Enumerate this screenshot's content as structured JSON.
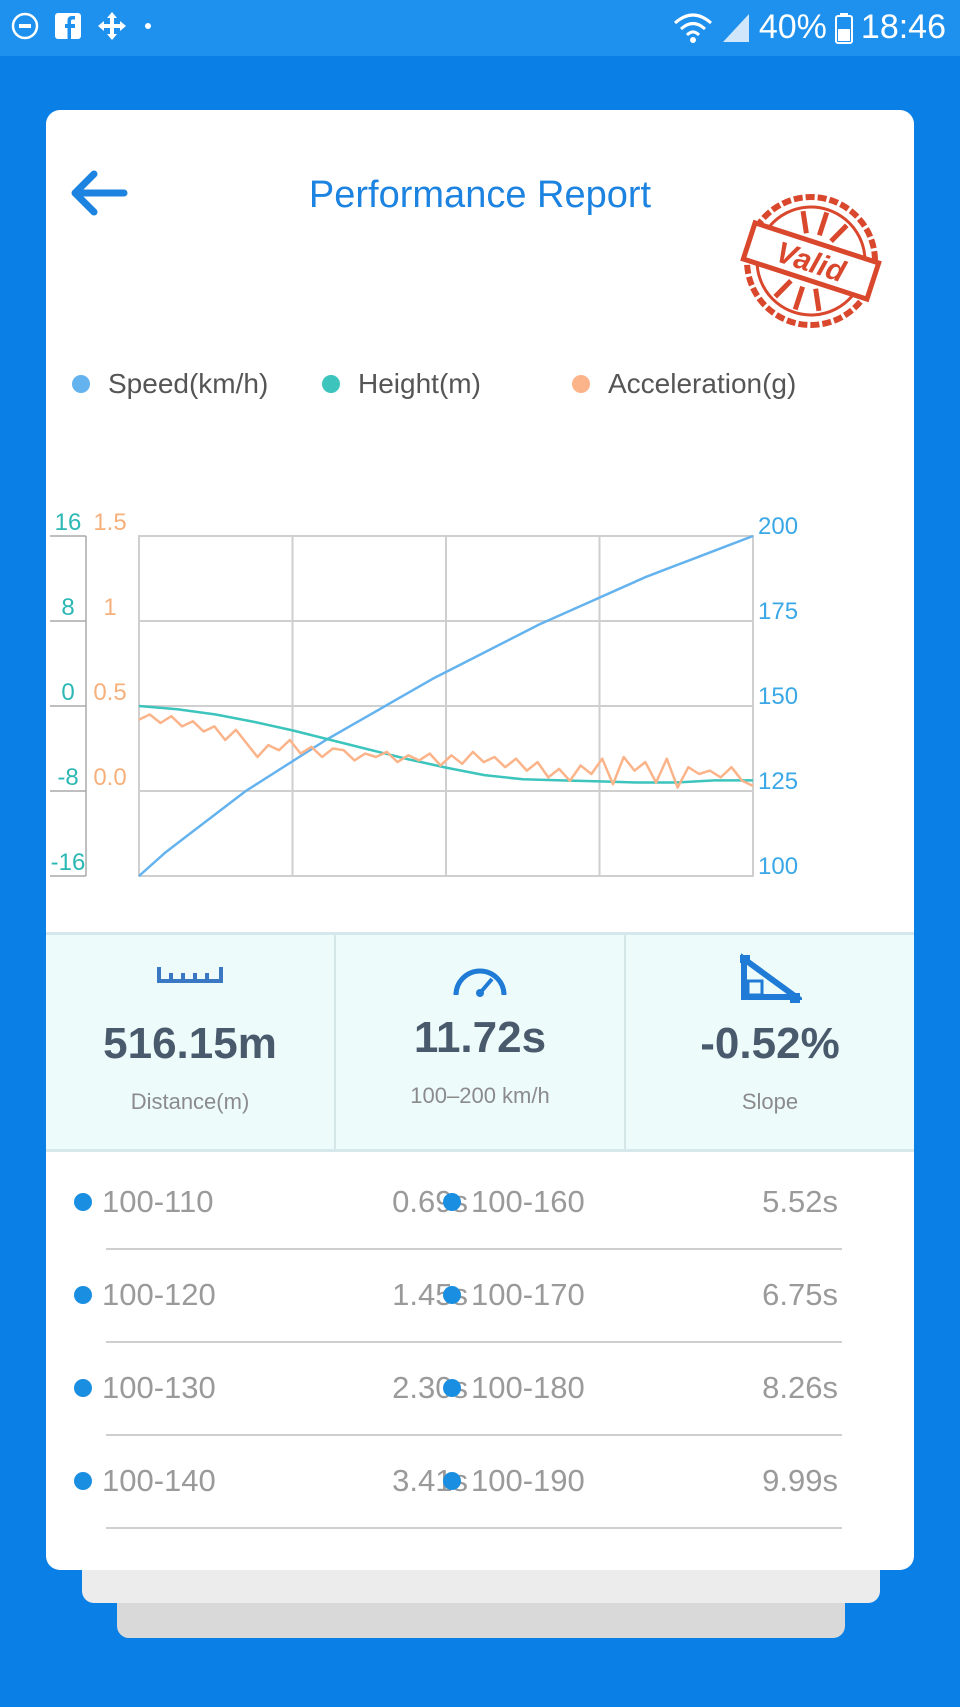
{
  "status_bar": {
    "battery": "40%",
    "time": "18:46"
  },
  "header": {
    "title": "Performance Report",
    "stamp_text": "Valid"
  },
  "legend": [
    {
      "label": "Speed(km/h)",
      "color": "#64b3ef"
    },
    {
      "label": "Height(m)",
      "color": "#3cc4bd"
    },
    {
      "label": "Acceleration(g)",
      "color": "#fbb48a"
    }
  ],
  "chart_data": {
    "type": "line",
    "grid": true,
    "legend_position": "top",
    "x_gridlines": 4,
    "axes": {
      "height_left": {
        "ticks": [
          "16",
          "8",
          "0",
          "-8",
          "-16"
        ],
        "range": [
          -16,
          16
        ],
        "color": "#2bb8b4"
      },
      "accel_left": {
        "ticks": [
          "1.5",
          "1",
          "0.5",
          "0.0"
        ],
        "range": [
          -0.5,
          1.5
        ],
        "color": "#f6b07c"
      },
      "speed_right": {
        "ticks": [
          "200",
          "175",
          "150",
          "125",
          "100"
        ],
        "range": [
          100,
          200
        ],
        "color": "#3aa8e6"
      }
    },
    "series": [
      {
        "name": "Speed(km/h)",
        "axis": "speed_right",
        "color": "#64b3ef",
        "values": [
          100,
          107,
          113,
          119,
          125,
          130,
          135,
          140,
          144.5,
          149,
          153.5,
          158,
          162,
          166,
          170,
          174,
          177.5,
          181,
          184.5,
          188,
          191,
          194,
          197,
          200
        ]
      },
      {
        "name": "Height(m)",
        "axis": "height_left",
        "color": "#3cc4bd",
        "values": [
          0.0,
          -0.3,
          -0.8,
          -1.5,
          -2.3,
          -3.2,
          -4.1,
          -5.0,
          -5.8,
          -6.5,
          -6.9,
          -7.0,
          -7.1,
          -7.2,
          -7.2,
          -7.0,
          -7.0
        ]
      },
      {
        "name": "Acceleration(g)",
        "axis": "accel_left",
        "color": "#fbb48a",
        "values": [
          0.42,
          0.45,
          0.4,
          0.44,
          0.38,
          0.41,
          0.35,
          0.38,
          0.3,
          0.36,
          0.28,
          0.2,
          0.27,
          0.24,
          0.3,
          0.22,
          0.26,
          0.2,
          0.25,
          0.24,
          0.18,
          0.22,
          0.2,
          0.23,
          0.17,
          0.21,
          0.18,
          0.22,
          0.15,
          0.21,
          0.16,
          0.23,
          0.17,
          0.2,
          0.14,
          0.19,
          0.12,
          0.17,
          0.08,
          0.13,
          0.06,
          0.15,
          0.1,
          0.19,
          0.04,
          0.2,
          0.12,
          0.17,
          0.05,
          0.19,
          0.02,
          0.14,
          0.1,
          0.12,
          0.08,
          0.14,
          0.06,
          0.03
        ]
      }
    ]
  },
  "stats": [
    {
      "icon": "ruler-icon",
      "value": "516.15m",
      "label": "Distance(m)"
    },
    {
      "icon": "speedometer-icon",
      "value": "11.72s",
      "label": "100–200 km/h"
    },
    {
      "icon": "slope-icon",
      "value": "-0.52%",
      "label": "Slope"
    }
  ],
  "splits": [
    {
      "left_range": "100-110",
      "left_time": "0.69s",
      "right_range": "100-160",
      "right_time": "5.52s"
    },
    {
      "left_range": "100-120",
      "left_time": "1.45s",
      "right_range": "100-170",
      "right_time": "6.75s"
    },
    {
      "left_range": "100-130",
      "left_time": "2.30s",
      "right_range": "100-180",
      "right_time": "8.26s"
    },
    {
      "left_range": "100-140",
      "left_time": "3.41s",
      "right_range": "100-190",
      "right_time": "9.99s"
    }
  ]
}
